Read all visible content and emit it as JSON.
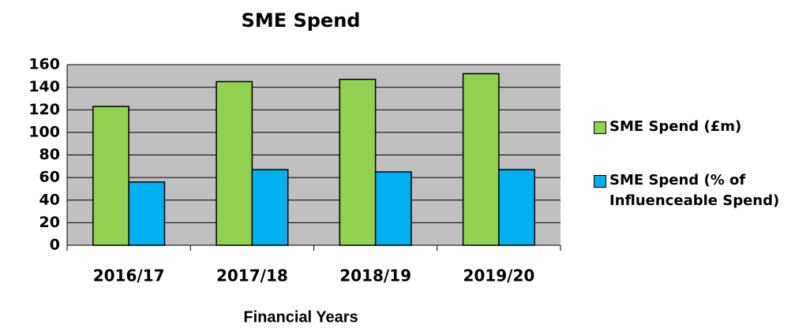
{
  "chart_data": {
    "type": "bar",
    "title": "SME Spend",
    "x_label": "Financial Years",
    "categories": [
      "2016/17",
      "2017/18",
      "2018/19",
      "2019/20"
    ],
    "series": [
      {
        "name": "SME Spend (£m)",
        "color": "#92d050",
        "values": [
          123,
          145,
          147,
          152
        ]
      },
      {
        "name": "SME Spend (% of Influenceable Spend)",
        "color": "#00b0f0",
        "values": [
          56,
          67,
          65,
          67
        ]
      }
    ],
    "ylim": [
      0,
      160
    ],
    "yticks": [
      0,
      20,
      40,
      60,
      80,
      100,
      120,
      140,
      160
    ],
    "grid": true,
    "legend": "right"
  }
}
